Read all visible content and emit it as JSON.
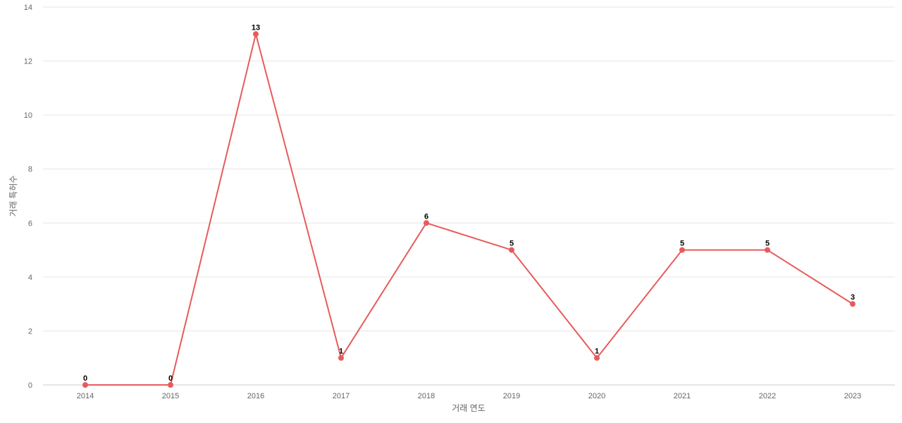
{
  "chart_data": {
    "type": "line",
    "title": "",
    "xlabel": "거래 연도",
    "ylabel": "거래 특허수",
    "categories": [
      "2014",
      "2015",
      "2016",
      "2017",
      "2018",
      "2019",
      "2020",
      "2021",
      "2022",
      "2023"
    ],
    "series": [
      {
        "values": [
          0,
          0,
          13,
          1,
          6,
          5,
          1,
          5,
          5,
          3
        ],
        "color": "#e85b5b"
      }
    ],
    "ylim": [
      0,
      14
    ],
    "yticks": [
      "0",
      "2",
      "4",
      "6",
      "8",
      "10",
      "12",
      "14"
    ],
    "grid": true,
    "legend": "none",
    "data_labels": true
  }
}
